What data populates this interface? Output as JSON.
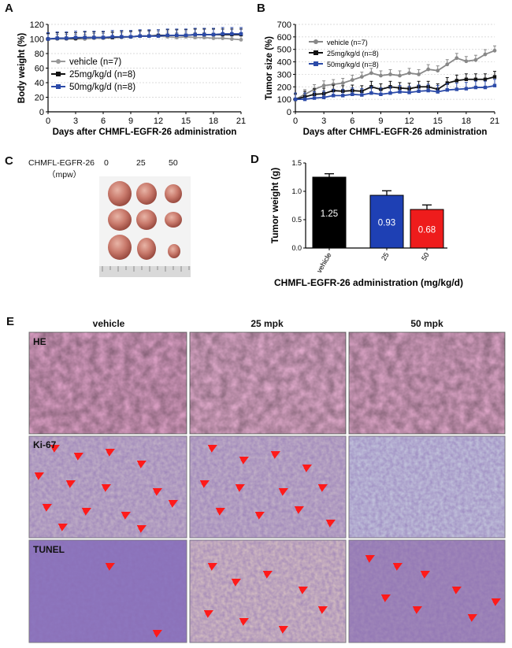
{
  "panels": {
    "a": {
      "letter": "A"
    },
    "b": {
      "letter": "B"
    },
    "c": {
      "letter": "C",
      "drug_label": "CHMFL-EGFR-26",
      "unit_label": "（mpw）",
      "doses": [
        "0",
        "25",
        "50"
      ]
    },
    "d": {
      "letter": "D"
    },
    "e": {
      "letter": "E",
      "columns": [
        "vehicle",
        "25 mpk",
        "50 mpk"
      ],
      "rows": [
        "HE",
        "Ki-67",
        "TUNEL"
      ]
    }
  },
  "chart_data": [
    {
      "id": "A",
      "type": "line",
      "xlabel": "Days after CHMFL-EGFR-26 administration",
      "ylabel": "Body weight (%)",
      "xlim": [
        0,
        21
      ],
      "ylim": [
        0,
        120
      ],
      "xticks": [
        "0",
        "3",
        "6",
        "9",
        "12",
        "15",
        "18",
        "21"
      ],
      "yticks": [
        "0",
        "20",
        "40",
        "60",
        "80",
        "100",
        "120"
      ],
      "legend_position": "bottom-left",
      "x": [
        0,
        1,
        2,
        3,
        4,
        5,
        6,
        7,
        8,
        9,
        10,
        11,
        12,
        13,
        14,
        15,
        16,
        17,
        18,
        19,
        20,
        21
      ],
      "series": [
        {
          "name": "vehicle (n=7)",
          "color": "#999999",
          "values": [
            100,
            100,
            100,
            100,
            100,
            101,
            101,
            102,
            102,
            103,
            104,
            104,
            104,
            103,
            102,
            103,
            102,
            102,
            101,
            101,
            100,
            99
          ]
        },
        {
          "name": "25mg/kg/d (n=8)",
          "color": "#111111",
          "values": [
            100,
            101,
            101,
            101,
            102,
            102,
            102,
            102,
            103,
            103,
            104,
            104,
            105,
            105,
            105,
            105,
            106,
            106,
            106,
            106,
            106,
            106
          ]
        },
        {
          "name": "50mg/kg/d (n=8)",
          "color": "#2b4aa8",
          "values": [
            100,
            101,
            101,
            102,
            102,
            102,
            102,
            103,
            103,
            103,
            104,
            104,
            104,
            105,
            105,
            105,
            106,
            106,
            106,
            107,
            107,
            107
          ]
        }
      ]
    },
    {
      "id": "B",
      "type": "line",
      "xlabel": "Days after CHMFL-EGFR-26 administration",
      "ylabel": "Tumor size (%)",
      "xlim": [
        0,
        21
      ],
      "ylim": [
        0,
        700
      ],
      "xticks": [
        "0",
        "3",
        "6",
        "9",
        "12",
        "15",
        "18",
        "21"
      ],
      "yticks": [
        "0",
        "100",
        "200",
        "300",
        "400",
        "500",
        "600",
        "700"
      ],
      "legend_position": "top-left",
      "x": [
        0,
        1,
        2,
        3,
        4,
        5,
        6,
        7,
        8,
        9,
        10,
        11,
        12,
        13,
        14,
        15,
        16,
        17,
        18,
        19,
        20,
        21
      ],
      "series": [
        {
          "name": "vehicle (n=7)",
          "color": "#888888",
          "values": [
            100,
            140,
            180,
            210,
            220,
            230,
            255,
            280,
            310,
            290,
            300,
            290,
            310,
            300,
            340,
            330,
            380,
            430,
            405,
            415,
            460,
            490
          ]
        },
        {
          "name": "25mg/kg/d (n=8)",
          "color": "#111111",
          "values": [
            100,
            120,
            140,
            145,
            170,
            165,
            170,
            165,
            200,
            180,
            200,
            190,
            185,
            200,
            200,
            180,
            230,
            250,
            260,
            260,
            260,
            280
          ]
        },
        {
          "name": "50mg/kg/d (n=8)",
          "color": "#2b4aa8",
          "values": [
            100,
            100,
            110,
            115,
            130,
            130,
            140,
            135,
            150,
            140,
            150,
            160,
            155,
            165,
            170,
            160,
            175,
            180,
            185,
            195,
            195,
            210
          ]
        }
      ]
    },
    {
      "id": "D",
      "type": "bar",
      "xlabel": "CHMFL-EGFR-26 administration (mg/kg/d)",
      "ylabel": "Tumor weight (g)",
      "ylim": [
        0,
        1.5
      ],
      "yticks": [
        "0.0",
        "0.5",
        "1.0",
        "1.5"
      ],
      "categories": [
        "vehicle",
        "25",
        "50"
      ],
      "values": [
        1.25,
        0.93,
        0.68
      ],
      "errors": [
        0.06,
        0.08,
        0.08
      ],
      "data_labels": [
        "1.25",
        "0.93",
        "0.68"
      ],
      "colors": [
        "#000000",
        "#1e40b4",
        "#ee1c1c"
      ]
    }
  ]
}
